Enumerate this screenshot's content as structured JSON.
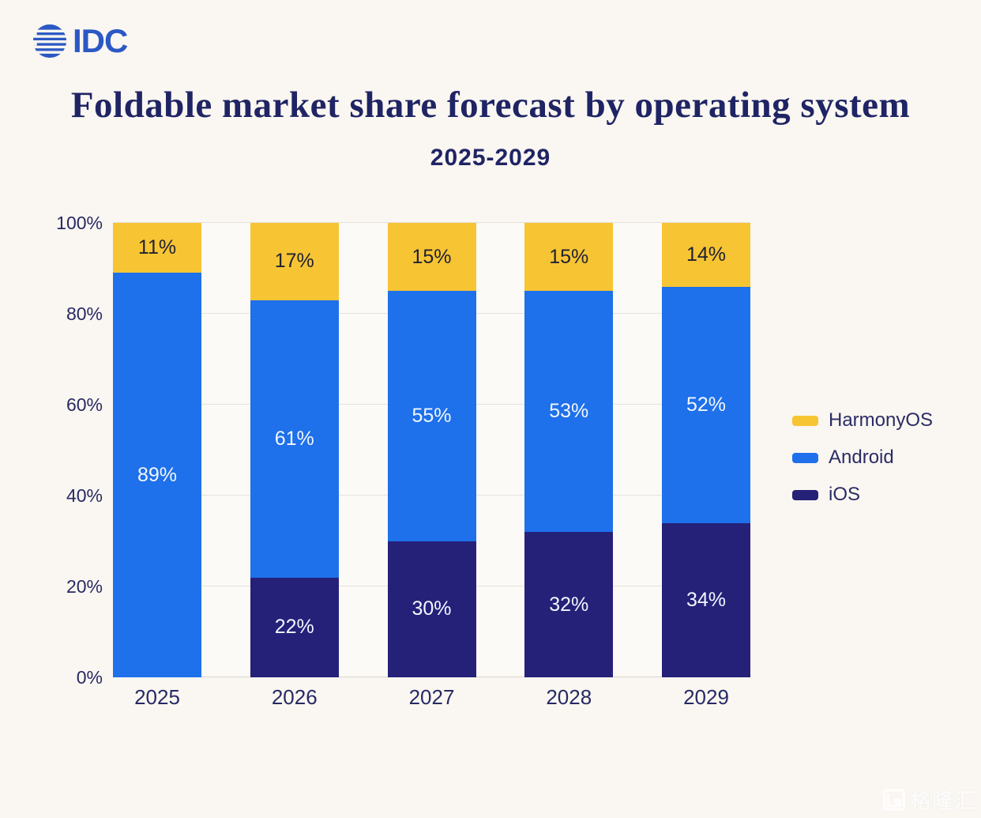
{
  "logo": {
    "text": "IDC"
  },
  "header": {
    "title": "Foldable market share forecast by operating system",
    "subtitle": "2025-2029"
  },
  "chart_data": {
    "type": "bar",
    "stacked": true,
    "title": "Foldable market share forecast by operating system",
    "subtitle": "2025-2029",
    "categories": [
      "2025",
      "2026",
      "2027",
      "2028",
      "2029"
    ],
    "series": [
      {
        "name": "HarmonyOS",
        "color": "#F7C433",
        "label_color": "#1F2133",
        "values": [
          11,
          17,
          15,
          15,
          14
        ]
      },
      {
        "name": "Android",
        "color": "#1E70EB",
        "label_color": "#F2F7FD",
        "values": [
          89,
          61,
          55,
          53,
          52
        ]
      },
      {
        "name": "iOS",
        "color": "#252179",
        "label_color": "#F2F7FD",
        "values": [
          0,
          22,
          30,
          32,
          34
        ]
      }
    ],
    "value_label_format": "percent",
    "xlabel": "",
    "ylabel": "",
    "ylim": [
      0,
      100
    ],
    "yticks": [
      "0%",
      "20%",
      "40%",
      "60%",
      "80%",
      "100%"
    ],
    "grid": true,
    "legend_position": "right"
  },
  "watermark": {
    "text": "格隆汇"
  },
  "colors": {
    "background": "#FAF6F1",
    "title_text": "#1F2464",
    "axis_text": "#272A64",
    "idc_blue": "#2B58C4",
    "harmonyos_yellow": "#F7C433",
    "android_blue": "#1E70EB",
    "ios_navy": "#252179"
  }
}
